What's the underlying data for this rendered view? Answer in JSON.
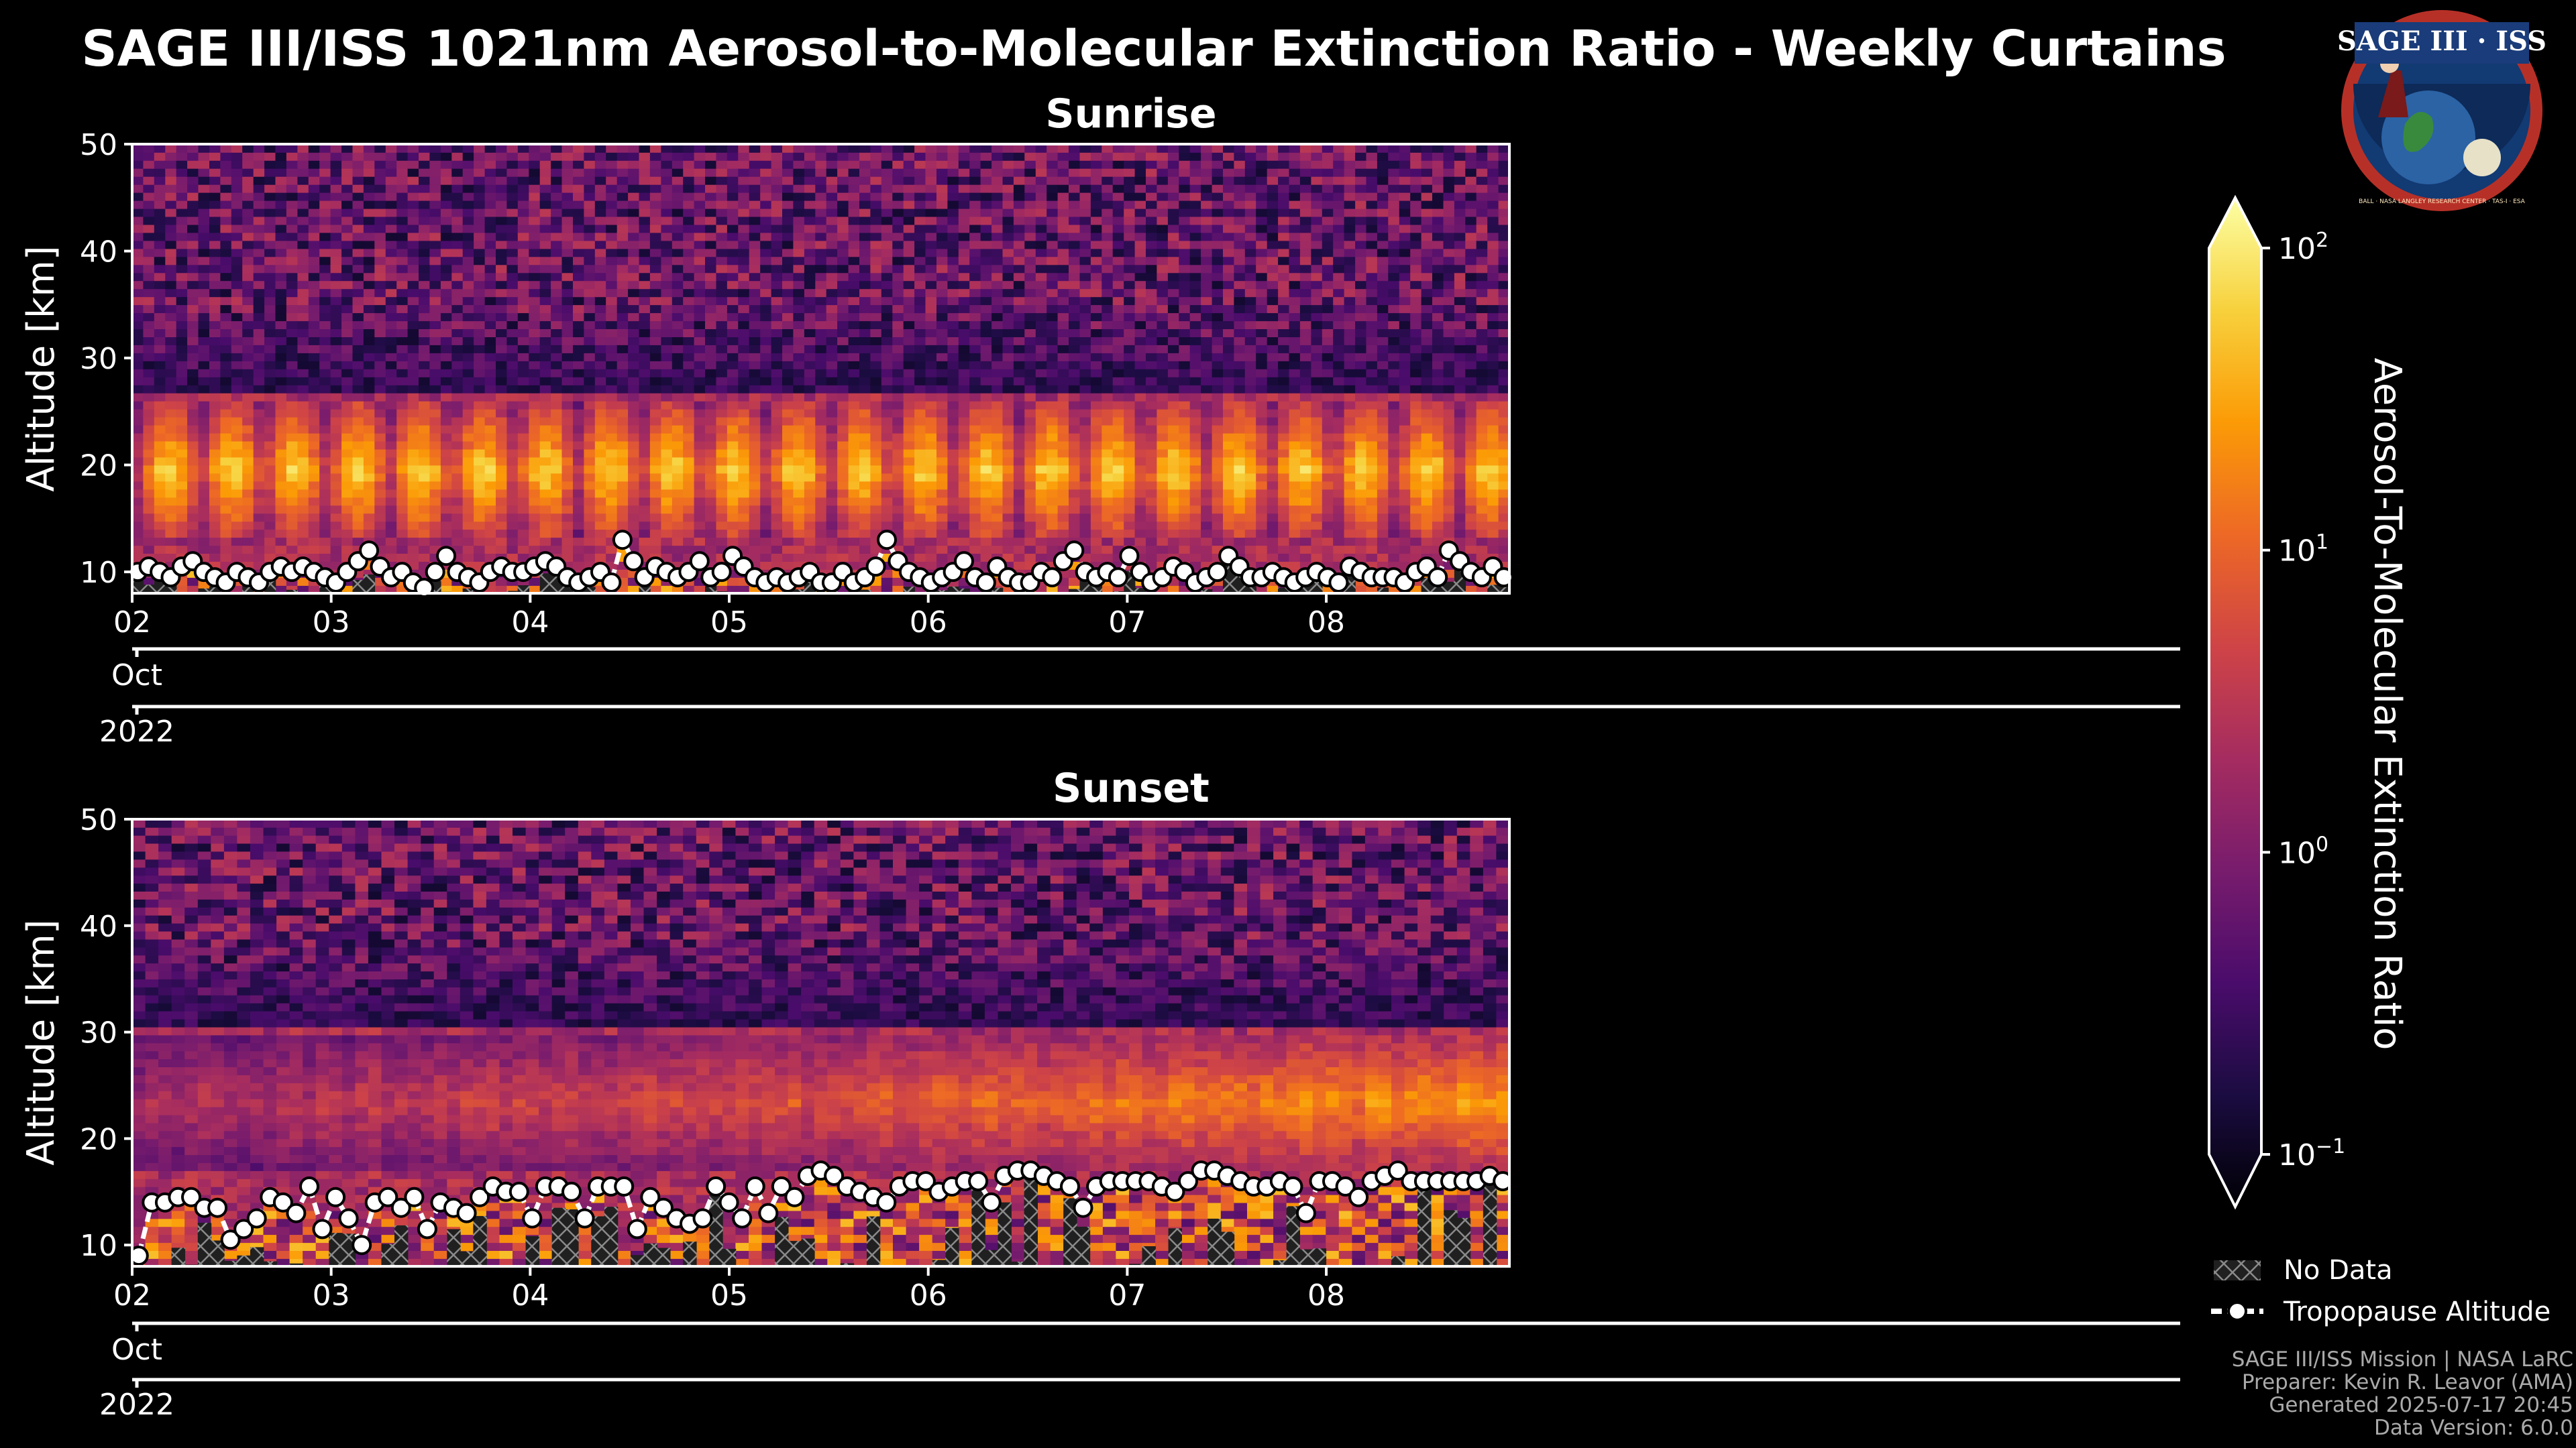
{
  "figure": {
    "title": "SAGE III/ISS 1021nm Aerosol-to-Molecular Extinction Ratio - Weekly Curtains",
    "logo": {
      "main_text": "SAGE III · ISS",
      "ring_text": "BALL · NASA LANGLEY RESEARCH CENTER · TAS-I · ESA"
    },
    "footer": {
      "line1": "SAGE III/ISS Mission | NASA LaRC",
      "line2": "Preparer: Kevin R. Leavor (AMA)",
      "line3": "Generated 2025-07-17 20:45",
      "line4": "Data Version: 6.0.0"
    },
    "legend": {
      "no_data": "No Data",
      "tropopause": "Tropopause Altitude"
    },
    "colors": {
      "background": "#000000",
      "frame": "#ffffff",
      "marker_fill": "#ffffff",
      "marker_edge": "#000000"
    }
  },
  "chart_data": [
    {
      "type": "heatmap",
      "title": "Sunrise",
      "xlabel": "",
      "ylabel": "Altitude [km]",
      "xlim_days": [
        2,
        8.92
      ],
      "ylim": [
        8,
        50
      ],
      "yticks": [
        "10",
        "20",
        "30",
        "40",
        "50"
      ],
      "xticks": [
        "02",
        "03",
        "04",
        "05",
        "06",
        "07",
        "08"
      ],
      "month_label": "Oct",
      "year_label": "2022",
      "aerosol_layer_km": [
        13,
        26
      ],
      "tropopause_km": [
        10,
        10.5,
        10,
        9.5,
        10.5,
        11,
        10,
        9.5,
        9,
        10,
        9.5,
        9,
        10,
        10.5,
        10,
        10.5,
        10,
        9.5,
        9,
        10,
        11,
        12,
        10.5,
        9.5,
        10,
        9,
        8.5,
        10,
        11.5,
        10,
        9.5,
        9,
        10,
        10.5,
        10,
        10,
        10.5,
        11,
        10.5,
        9.5,
        9,
        9.5,
        10,
        9,
        13,
        11,
        9.5,
        10.5,
        10,
        9.5,
        10,
        11,
        9.5,
        10,
        11.5,
        10.5,
        9.5,
        9,
        9.5,
        9,
        9.5,
        10,
        9,
        9,
        10,
        9,
        9.5,
        10.5,
        13,
        11,
        10,
        9.5,
        9,
        9.5,
        10,
        11,
        9.5,
        9,
        10.5,
        9.5,
        9,
        9,
        10,
        9.5,
        11,
        12,
        10,
        9.5,
        10,
        9.5,
        11.5,
        10,
        9,
        9.5,
        10.5,
        10,
        9,
        9.5,
        10,
        11.5,
        10.5,
        9.5,
        9.5,
        10,
        9.5,
        9,
        9.5,
        10,
        9.5,
        9,
        10.5,
        10,
        9.5,
        9.5,
        9.5,
        9,
        10,
        10.5,
        9.5,
        12,
        11,
        10,
        9.5,
        10.5,
        9.5
      ]
    },
    {
      "type": "heatmap",
      "title": "Sunset",
      "xlabel": "",
      "ylabel": "Altitude [km]",
      "xlim_days": [
        2,
        8.92
      ],
      "ylim": [
        8,
        50
      ],
      "yticks": [
        "10",
        "20",
        "30",
        "40",
        "50"
      ],
      "xticks": [
        "02",
        "03",
        "04",
        "05",
        "06",
        "07",
        "08"
      ],
      "month_label": "Oct",
      "year_label": "2022",
      "aerosol_layer_km": [
        17,
        30
      ],
      "tropopause_km": [
        9,
        14,
        14,
        14.5,
        14.5,
        13.5,
        13.5,
        10.5,
        11.5,
        12.5,
        14.5,
        14,
        13,
        15.5,
        11.5,
        14.5,
        12.5,
        10,
        14,
        14.5,
        13.5,
        14.5,
        11.5,
        14,
        13.5,
        13,
        14.5,
        15.5,
        15,
        15,
        12.5,
        15.5,
        15.5,
        15,
        12.5,
        15.5,
        15.5,
        15.5,
        11.5,
        14.5,
        13.5,
        12.5,
        12,
        12.5,
        15.5,
        14,
        12.5,
        15.5,
        13,
        15.5,
        14.5,
        16.5,
        17,
        16.5,
        15.5,
        15,
        14.5,
        14,
        15.5,
        16,
        16,
        15,
        15.5,
        16,
        16,
        14,
        16.5,
        17,
        17,
        16.5,
        16,
        15.5,
        13.5,
        15.5,
        16,
        16,
        16,
        16,
        15.5,
        15,
        16,
        17,
        17,
        16.5,
        16,
        15.5,
        15.5,
        16,
        15.5,
        13,
        16,
        16,
        15.5,
        14.5,
        16,
        16.5,
        17,
        16,
        16,
        16,
        16,
        16,
        16,
        16.5,
        16
      ]
    }
  ],
  "colorbar": {
    "label": "Aerosol-To-Molecular Extinction Ratio",
    "ticks": [
      {
        "base": "10",
        "exp": "2",
        "value": 100
      },
      {
        "base": "10",
        "exp": "1",
        "value": 10
      },
      {
        "base": "10",
        "exp": "0",
        "value": 1
      },
      {
        "base": "10",
        "exp": "−1",
        "value": 0.1
      }
    ],
    "scale": "log",
    "range": [
      0.1,
      100
    ],
    "colormap": "inferno",
    "stops": [
      "#000004",
      "#1b0c41",
      "#4a0c6b",
      "#781c6d",
      "#a52c60",
      "#cf4446",
      "#ed6925",
      "#fb9b06",
      "#f7d13d",
      "#fcffa4"
    ]
  }
}
